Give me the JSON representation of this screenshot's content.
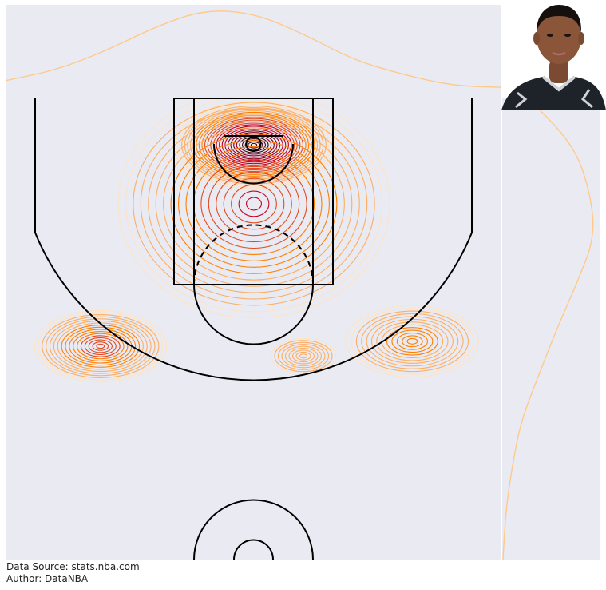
{
  "chart_data": {
    "type": "contour",
    "subject": "shot density heatmap on half court with marginal density plots",
    "colormap": [
      "#ffffff",
      "#fde4c4",
      "#fdae61",
      "#ff7f00",
      "#e34a1f",
      "#c8001e",
      "#8b0020",
      "#3a0010"
    ],
    "court": {
      "x_range": [
        -250,
        250
      ],
      "y_range": [
        -47.5,
        422.5
      ],
      "lines": "#000000",
      "background": "#eaeaf2"
    },
    "density_peaks": [
      {
        "x": 0,
        "y": 0,
        "weight": 1.0,
        "spread": 55
      },
      {
        "x": 0,
        "y": 60,
        "weight": 0.55,
        "spread": 85
      },
      {
        "x": -155,
        "y": 205,
        "weight": 0.5,
        "spread": 45
      },
      {
        "x": 160,
        "y": 200,
        "weight": 0.3,
        "spread": 45
      },
      {
        "x": 50,
        "y": 215,
        "weight": 0.12,
        "spread": 22
      }
    ],
    "marginal_x_density": [
      0.18,
      0.3,
      0.52,
      0.8,
      1.0,
      0.96,
      0.72,
      0.42,
      0.25,
      0.12,
      0.1
    ],
    "marginal_y_density": [
      0.2,
      0.55,
      0.68,
      0.72,
      0.58,
      0.42,
      0.28,
      0.14,
      0.07,
      0.02,
      0.0
    ],
    "player_photo": true
  },
  "credits": {
    "source": "Data Source: stats.nba.com",
    "author": "Author: DataNBA"
  }
}
